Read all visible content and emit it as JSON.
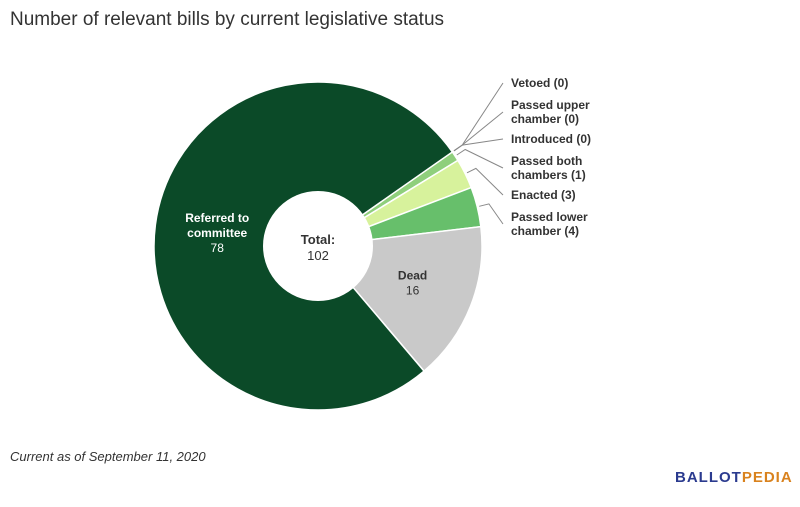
{
  "chart_data": {
    "type": "pie",
    "title": "Number of relevant bills by current legislative status",
    "center_label": {
      "title": "Total:",
      "value": "102"
    },
    "slices": [
      {
        "name": "Vetoed",
        "label_lines": [
          "Vetoed (0)"
        ],
        "value": 0,
        "color": "#dcebb4",
        "label_mode": "outside"
      },
      {
        "name": "Passed upper chamber",
        "label_lines": [
          "Passed upper",
          "chamber (0)"
        ],
        "value": 0,
        "color": "#bfe1a8",
        "label_mode": "outside"
      },
      {
        "name": "Introduced",
        "label_lines": [
          "Introduced (0)"
        ],
        "value": 0,
        "color": "#a5d38f",
        "label_mode": "outside"
      },
      {
        "name": "Passed both chambers",
        "label_lines": [
          "Passed both",
          "chambers (1)"
        ],
        "value": 1,
        "color": "#8fcf7c",
        "label_mode": "outside"
      },
      {
        "name": "Enacted",
        "label_lines": [
          "Enacted (3)"
        ],
        "value": 3,
        "color": "#d7f29c",
        "label_mode": "outside"
      },
      {
        "name": "Passed lower chamber",
        "label_lines": [
          "Passed lower",
          "chamber (4)"
        ],
        "value": 4,
        "color": "#67bf6b",
        "label_mode": "outside"
      },
      {
        "name": "Dead",
        "label_lines": [
          "Dead"
        ],
        "value_text": "16",
        "value": 16,
        "color": "#c9c9c9",
        "label_mode": "inside"
      },
      {
        "name": "Referred to committee",
        "label_lines": [
          "Referred to",
          "committee"
        ],
        "value_text": "78",
        "value": 78,
        "color": "#0b4a28",
        "label_mode": "inside"
      }
    ]
  },
  "footnote": "Current as of September 11, 2020",
  "logo": {
    "part1": "BALLOT",
    "part2": "PEDIA"
  }
}
